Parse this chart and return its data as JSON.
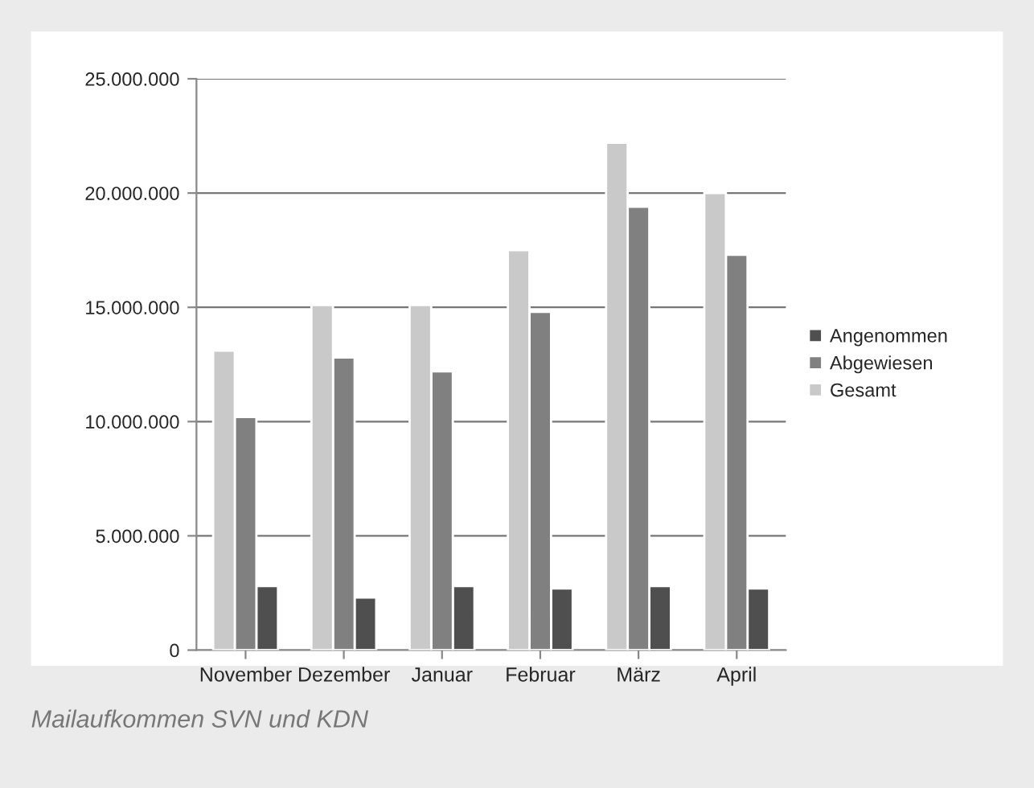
{
  "chart_data": {
    "type": "bar",
    "categories": [
      "November",
      "Dezember",
      "Januar",
      "Februar",
      "März",
      "April"
    ],
    "series": [
      {
        "name": "Angenommen",
        "color": "#4f4f4f",
        "values": [
          2800000,
          2300000,
          2800000,
          2700000,
          2800000,
          2700000
        ]
      },
      {
        "name": "Abgewiesen",
        "color": "#808080",
        "values": [
          10200000,
          12800000,
          12200000,
          14800000,
          19400000,
          17300000
        ]
      },
      {
        "name": "Gesamt",
        "color": "#c9c9c9",
        "values": [
          13100000,
          15100000,
          15100000,
          17500000,
          22200000,
          20000000
        ]
      }
    ],
    "ylim": [
      0,
      25000000
    ],
    "yticks": [
      0,
      {
        "value": 5000000,
        "label": "5.000.000"
      },
      {
        "value": 10000000,
        "label": "10.000.000"
      },
      {
        "value": 15000000,
        "label": "15.000.000"
      },
      {
        "value": 20000000,
        "label": "20.000.000"
      },
      {
        "value": 25000000,
        "label": "25.000.000"
      }
    ],
    "grid": "y",
    "legend": "right",
    "annotations": [
      "Mailaufkommen SVN und KDN"
    ]
  }
}
